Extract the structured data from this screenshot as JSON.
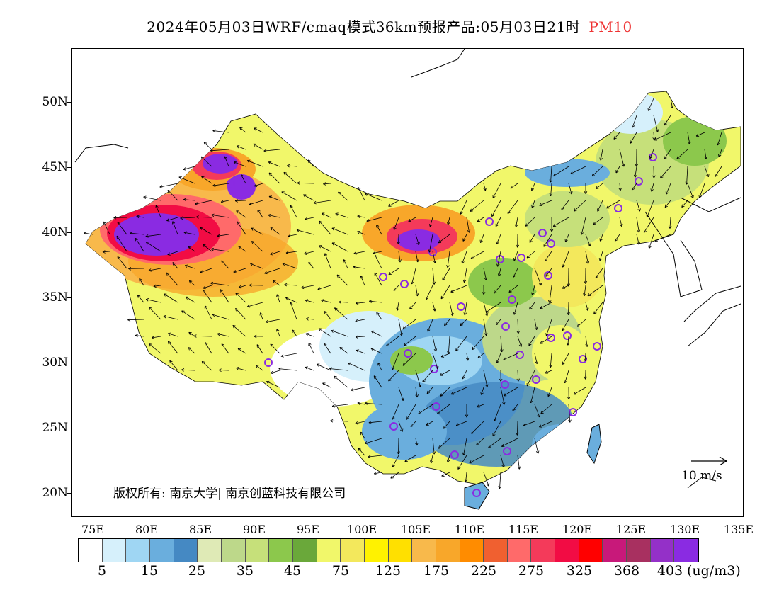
{
  "title": {
    "main": "2024年05月03日WRF/cmaq模式36km预报产品:05月03日21时",
    "pollutant": "PM10"
  },
  "axes": {
    "latitudes": [
      "50N",
      "45N",
      "40N",
      "35N",
      "30N",
      "25N",
      "20N"
    ],
    "longitudes": [
      "75E",
      "80E",
      "85E",
      "90E",
      "95E",
      "100E",
      "105E",
      "110E",
      "115E",
      "120E",
      "125E",
      "130E",
      "135E"
    ]
  },
  "copyright": "版权所有: 南京大学| 南京创蓝科技有限公司",
  "wind_reference": "10 m/s",
  "legend": {
    "colors": [
      "#ffffff",
      "#d6f0fb",
      "#9fd6f3",
      "#6aaedd",
      "#4589c3",
      "#dfeab6",
      "#bdd88a",
      "#c6e07a",
      "#8cc84c",
      "#6aa83a",
      "#f1f76a",
      "#f3e85c",
      "#fff200",
      "#ffe000",
      "#f8b94b",
      "#f8a72a",
      "#ff8c00",
      "#f06030",
      "#ff6a6a",
      "#f43a5a",
      "#f20c44",
      "#ff0000",
      "#c8197a",
      "#a83060",
      "#9430c8",
      "#8a2be2"
    ],
    "labels": [
      "5",
      "15",
      "25",
      "35",
      "45",
      "75",
      "125",
      "175",
      "225",
      "275",
      "325",
      "368",
      "403"
    ],
    "unit": "(ug/m3)"
  }
}
